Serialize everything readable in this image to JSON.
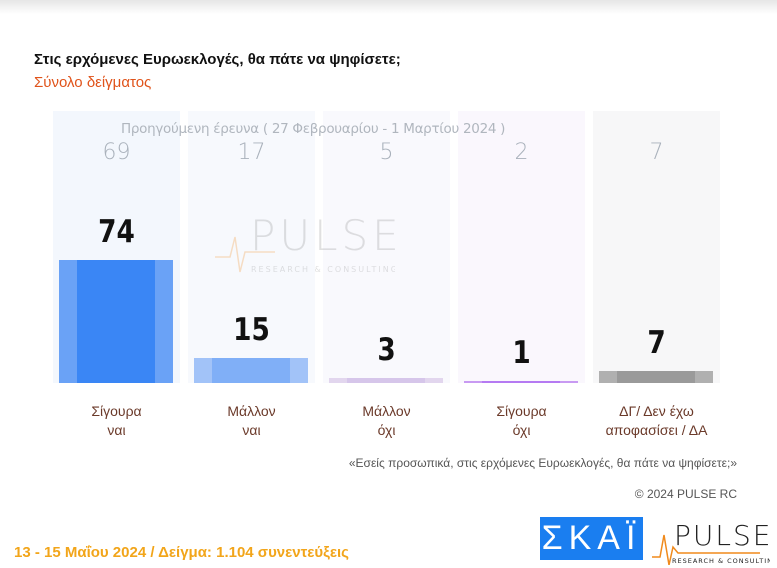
{
  "title": "Στις ερχόμενες Ευρωεκλογές, θα πάτε να ψηφίσετε;",
  "subtitle": "Σύνολο δείγματος",
  "chart_data": {
    "type": "bar",
    "title": "Στις ερχόμενες Ευρωεκλογές, θα πάτε να ψηφίσετε;",
    "subtitle": "Σύνολο δείγματος",
    "categories": [
      "Σίγουρα ναι",
      "Μάλλον ναι",
      "Μάλλον όχι",
      "Σίγουρα όχι",
      "ΔΓ/ Δεν έχω αποφασίσει / ΔΑ"
    ],
    "category_lines": [
      [
        "Σίγουρα",
        "ναι"
      ],
      [
        "Μάλλον",
        "ναι"
      ],
      [
        "Μάλλον",
        "όχι"
      ],
      [
        "Σίγουρα",
        "όχι"
      ],
      [
        "ΔΓ/ Δεν έχω",
        "αποφασίσει / ΔΑ"
      ]
    ],
    "values": [
      74,
      15,
      3,
      1,
      7
    ],
    "previous_label": "Προηγούμενη έρευνα  ( 27 Φεβρουαρίου - 1 Μαρτίου 2024 )",
    "previous_values": [
      69,
      17,
      5,
      2,
      7
    ],
    "colors": [
      "#3a86f5",
      "#80aff7",
      "#d6c6ea",
      "#b57af2",
      "#9a9a9a"
    ],
    "edge_colors": [
      "#6aa2f6",
      "#a2c3f8",
      "#e2d6ee",
      "#c89af2",
      "#b0b0b0"
    ],
    "column_bg": [
      "#f3f7fd",
      "#f7f9fd",
      "#f9f9fd",
      "#faf7fd",
      "#f7f7f8"
    ],
    "ylim": [
      0,
      100
    ]
  },
  "question": "«Εσείς προσωπικά, στις ερχόμενες Ευρωεκλογές, θα πάτε να ψηφίσετε;»",
  "copyright": "© 2024 PULSE RC",
  "footer": "13 - 15  Μαΐου 2024  /  Δείγμα:  1.104 συνεντεύξεις",
  "logos": {
    "skai": "ΣΚΑΪ",
    "pulse": "PULSE",
    "pulse_sub": "RESEARCH & CONSULTING"
  }
}
